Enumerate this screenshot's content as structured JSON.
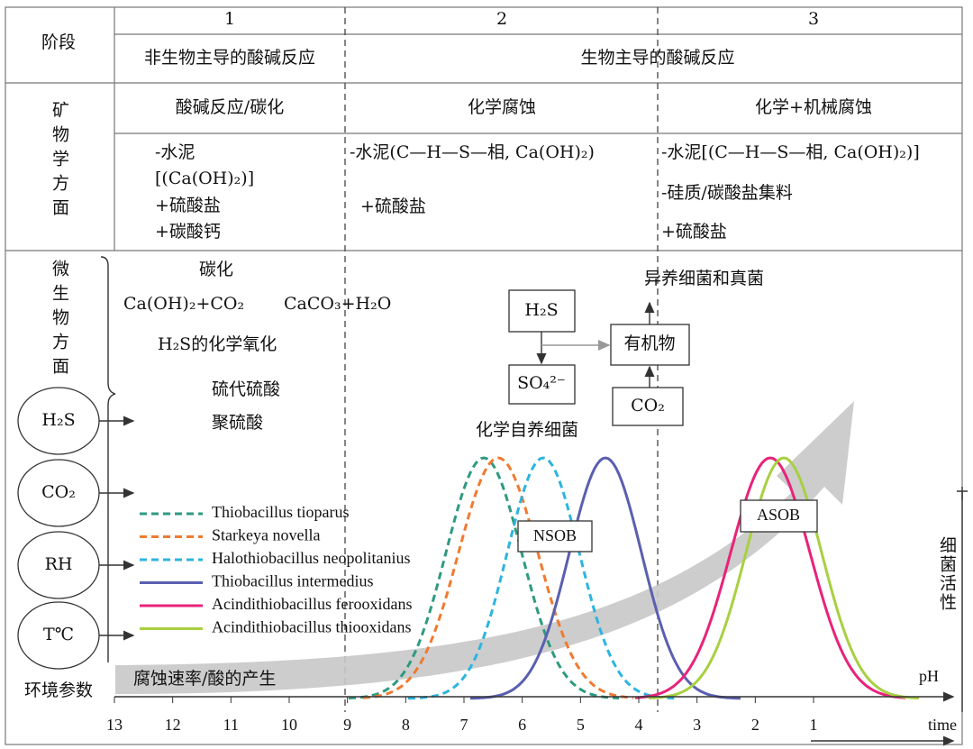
{
  "stages": {
    "numbers": [
      "1",
      "2",
      "3"
    ],
    "label": "阶段",
    "abiotic": "非生物主导的酸碱反应",
    "biotic": "生物主导的酸碱反应"
  },
  "mineralogy": {
    "label": "矿物学方面",
    "headers": [
      "酸碱反应/碳化",
      "化学腐蚀",
      "化学+机械腐蚀"
    ],
    "col1": [
      "-水泥",
      "[(Ca(OH)₂)]",
      "+硫酸盐",
      "+碳酸钙"
    ],
    "col2": [
      "-水泥(C—H—S—相, Ca(OH)₂)",
      "+硫酸盐"
    ],
    "col3": [
      "-水泥[(C—H—S—相, Ca(OH)₂)]",
      "-硅质/碳酸盐集料",
      "+硫酸盐"
    ]
  },
  "microbial": {
    "label": "微生物方面",
    "carbonation": "碳化",
    "reaction_left": "Ca(OH)₂+CO₂",
    "reaction_right": "CaCO₃+H₂O",
    "h2s_oxidation": "H₂S的化学氧化",
    "thiosulfate": "硫代硫酸",
    "polythionate": "聚硫酸",
    "heterotrophs": "异养细菌和真菌",
    "autotrophs": "化学自养细菌",
    "boxes": {
      "h2s": "H₂S",
      "so4": "SO₄²⁻",
      "organic": "有机物",
      "co2": "CO₂"
    },
    "nsob": "NSOB",
    "asob": "ASOB"
  },
  "environment": {
    "label": "环境参数",
    "params": [
      "H₂S",
      "CO₂",
      "RH",
      "T℃"
    ]
  },
  "corrosion_label": "腐蚀速率/酸的产生",
  "legend": [
    {
      "name": "Thiobacillus tioparus",
      "color": "#2e9a80",
      "dashed": true
    },
    {
      "name": "Starkeya novella",
      "color": "#f07a30",
      "dashed": true
    },
    {
      "name": "Halothiobacillus neopolitanius",
      "color": "#2cb4e0",
      "dashed": true
    },
    {
      "name": "Thiobacillus intermedius",
      "color": "#5a5fb0",
      "dashed": false
    },
    {
      "name": "Acindithiobacillus ferooxidans",
      "color": "#e8237a",
      "dashed": false
    },
    {
      "name": "Acindithiobacillus thiooxidans",
      "color": "#a8d040",
      "dashed": false
    }
  ],
  "axis": {
    "label": "pH",
    "time": "time",
    "activity": "细菌活性",
    "ticks": [
      13,
      12,
      11,
      10,
      9,
      8,
      7,
      6,
      5,
      4,
      3,
      2,
      1
    ]
  }
}
